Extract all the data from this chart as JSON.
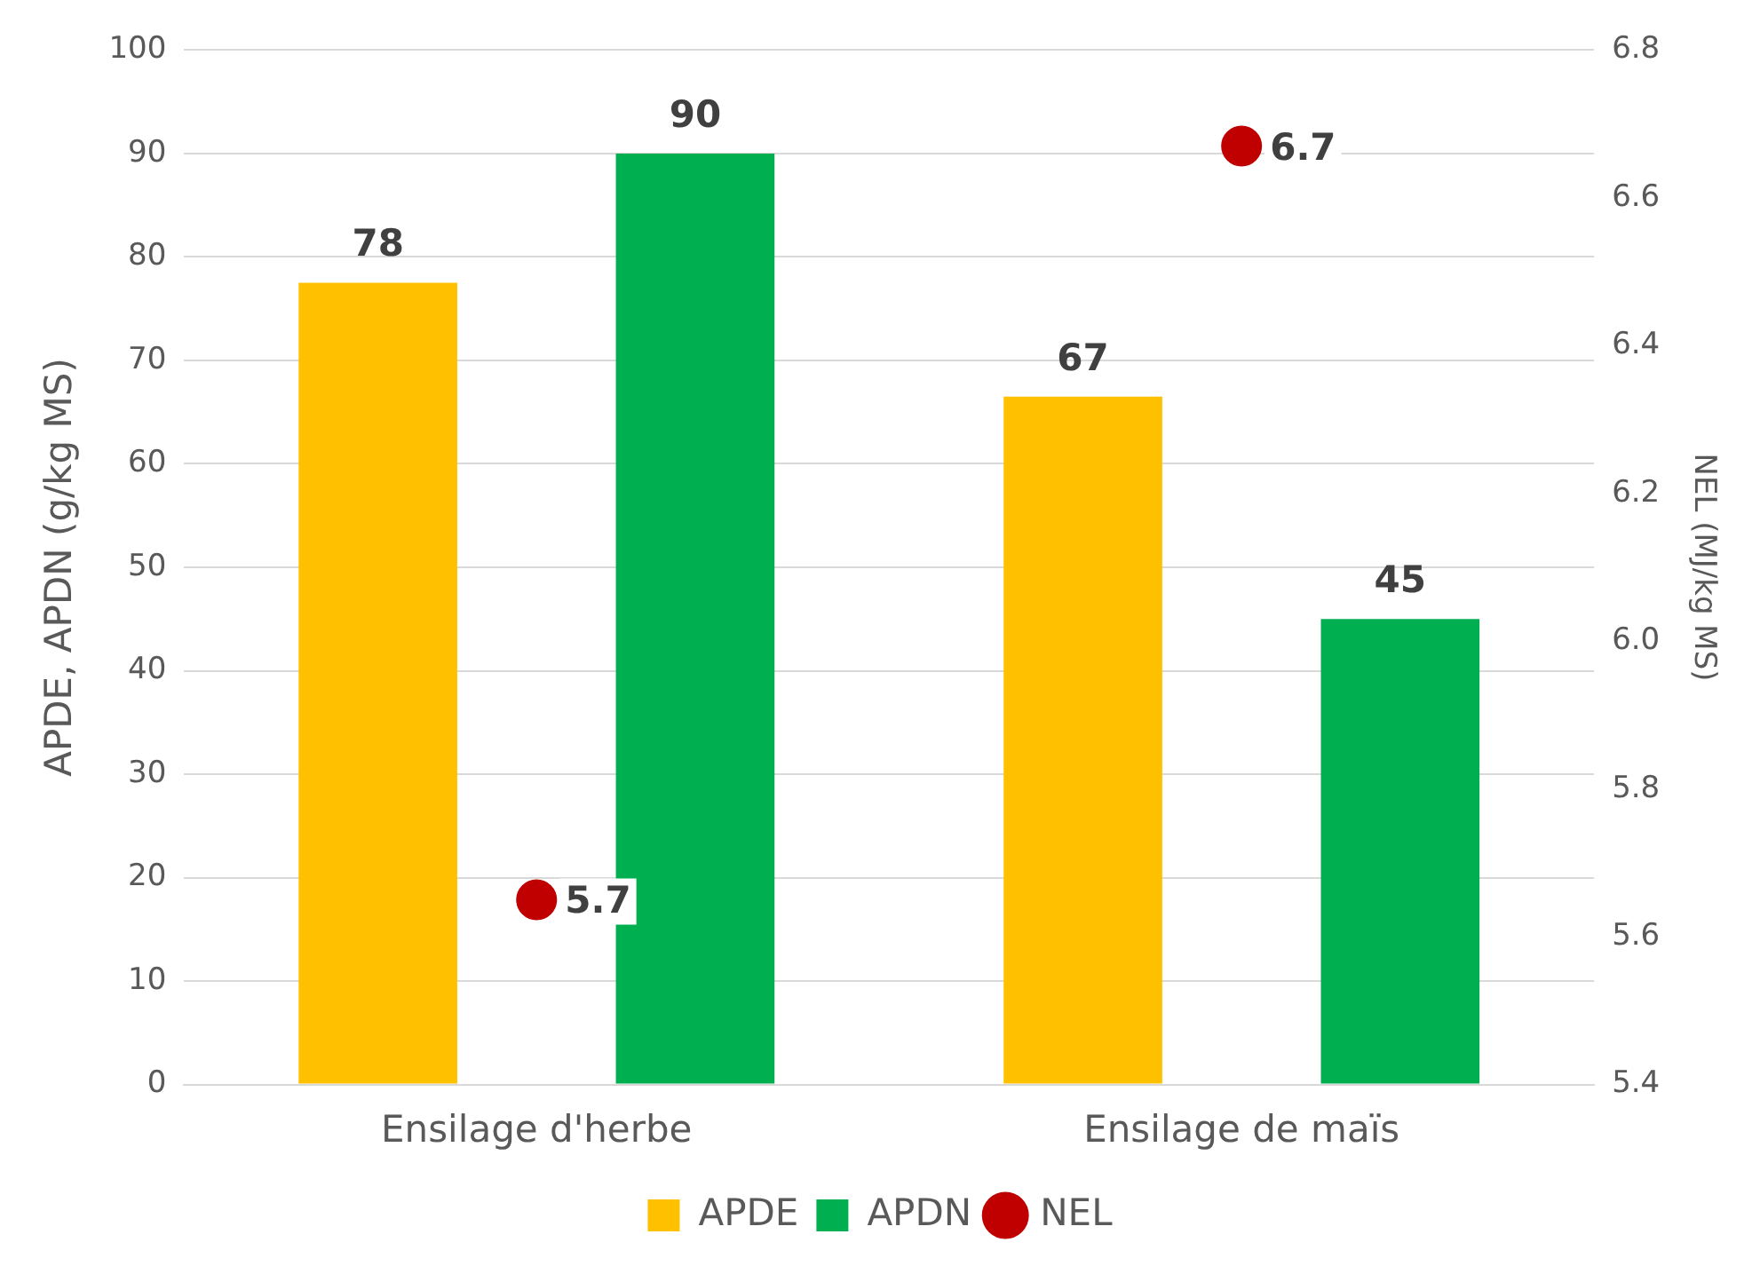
{
  "chart_data": {
    "type": "bar",
    "categories": [
      "Ensilage d'herbe",
      "Ensilage de maïs"
    ],
    "ylabel": "APDE, APDN (g/kg MS)",
    "y2label": "NEL (MJ/kg MS)",
    "series": [
      {
        "name": "APDE",
        "color": "#ffc000",
        "values": [
          77.5,
          66.5
        ],
        "value_labels": [
          "78",
          "67"
        ]
      },
      {
        "name": "APDN",
        "color": "#00b050",
        "values": [
          90,
          45
        ],
        "value_labels": [
          "90",
          "45"
        ]
      },
      {
        "name": "NEL",
        "type": "scatter",
        "axis": "y2",
        "marker": "circle",
        "color": "#c00000",
        "x": [
          "Ensilage d'herbe",
          "Ensilage de maïs"
        ],
        "values": [
          5.65,
          6.67
        ],
        "value_labels": [
          "5.7",
          "6.7"
        ]
      }
    ],
    "ylim": [
      0,
      100
    ],
    "yticks": [
      0,
      10,
      20,
      30,
      40,
      50,
      60,
      70,
      80,
      90,
      100
    ],
    "y2lim": [
      5.4,
      6.8
    ],
    "y2ticks": [
      5.4,
      5.6,
      5.8,
      {
        "value": 6,
        "label": "6.0"
      },
      6.2,
      6.4,
      6.6,
      6.8
    ],
    "grid": "y",
    "legend": "bottom"
  }
}
